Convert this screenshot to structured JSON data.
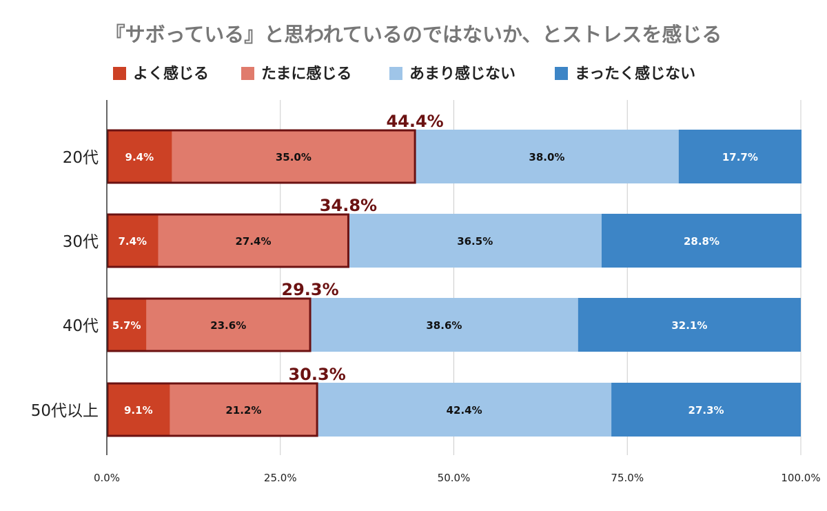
{
  "chart_data": {
    "type": "bar",
    "orientation": "horizontal",
    "stacked": true,
    "title": "『サボっている』と思われているのではないか、とストレスを感じる",
    "categories": [
      "20代",
      "30代",
      "40代",
      "50代以上"
    ],
    "series": [
      {
        "name": "よく感じる",
        "color": "#cc4125",
        "values": [
          9.4,
          7.4,
          5.7,
          9.1
        ],
        "label_color": "#ffffff"
      },
      {
        "name": "たまに感じる",
        "color": "#e07b6c",
        "values": [
          35.0,
          27.4,
          23.6,
          21.2
        ],
        "label_color": "#111111"
      },
      {
        "name": "あまり感じない",
        "color": "#9fc5e8",
        "values": [
          38.0,
          36.5,
          38.6,
          42.4
        ],
        "label_color": "#111111"
      },
      {
        "name": "まったく感じない",
        "color": "#3d85c6",
        "values": [
          17.7,
          28.8,
          32.1,
          27.3
        ],
        "label_color": "#ffffff"
      }
    ],
    "value_labels": [
      [
        "9.4%",
        "35.0%",
        "38.0%",
        "17.7%"
      ],
      [
        "7.4%",
        "27.4%",
        "36.5%",
        "28.8%"
      ],
      [
        "5.7%",
        "23.6%",
        "38.6%",
        "32.1%"
      ],
      [
        "9.1%",
        "21.2%",
        "42.4%",
        "27.3%"
      ]
    ],
    "highlight_totals": [
      44.4,
      34.8,
      29.3,
      30.3
    ],
    "highlight_labels": [
      "44.4%",
      "34.8%",
      "29.3%",
      "30.3%"
    ],
    "highlight_color": "#6b1212",
    "xlim": [
      0,
      100
    ],
    "x_ticks": [
      0,
      25,
      50,
      75,
      100
    ],
    "x_tick_labels": [
      "0.0%",
      "25.0%",
      "50.0%",
      "75.0%",
      "100.0%"
    ],
    "grid": true,
    "legend_position": "top"
  }
}
